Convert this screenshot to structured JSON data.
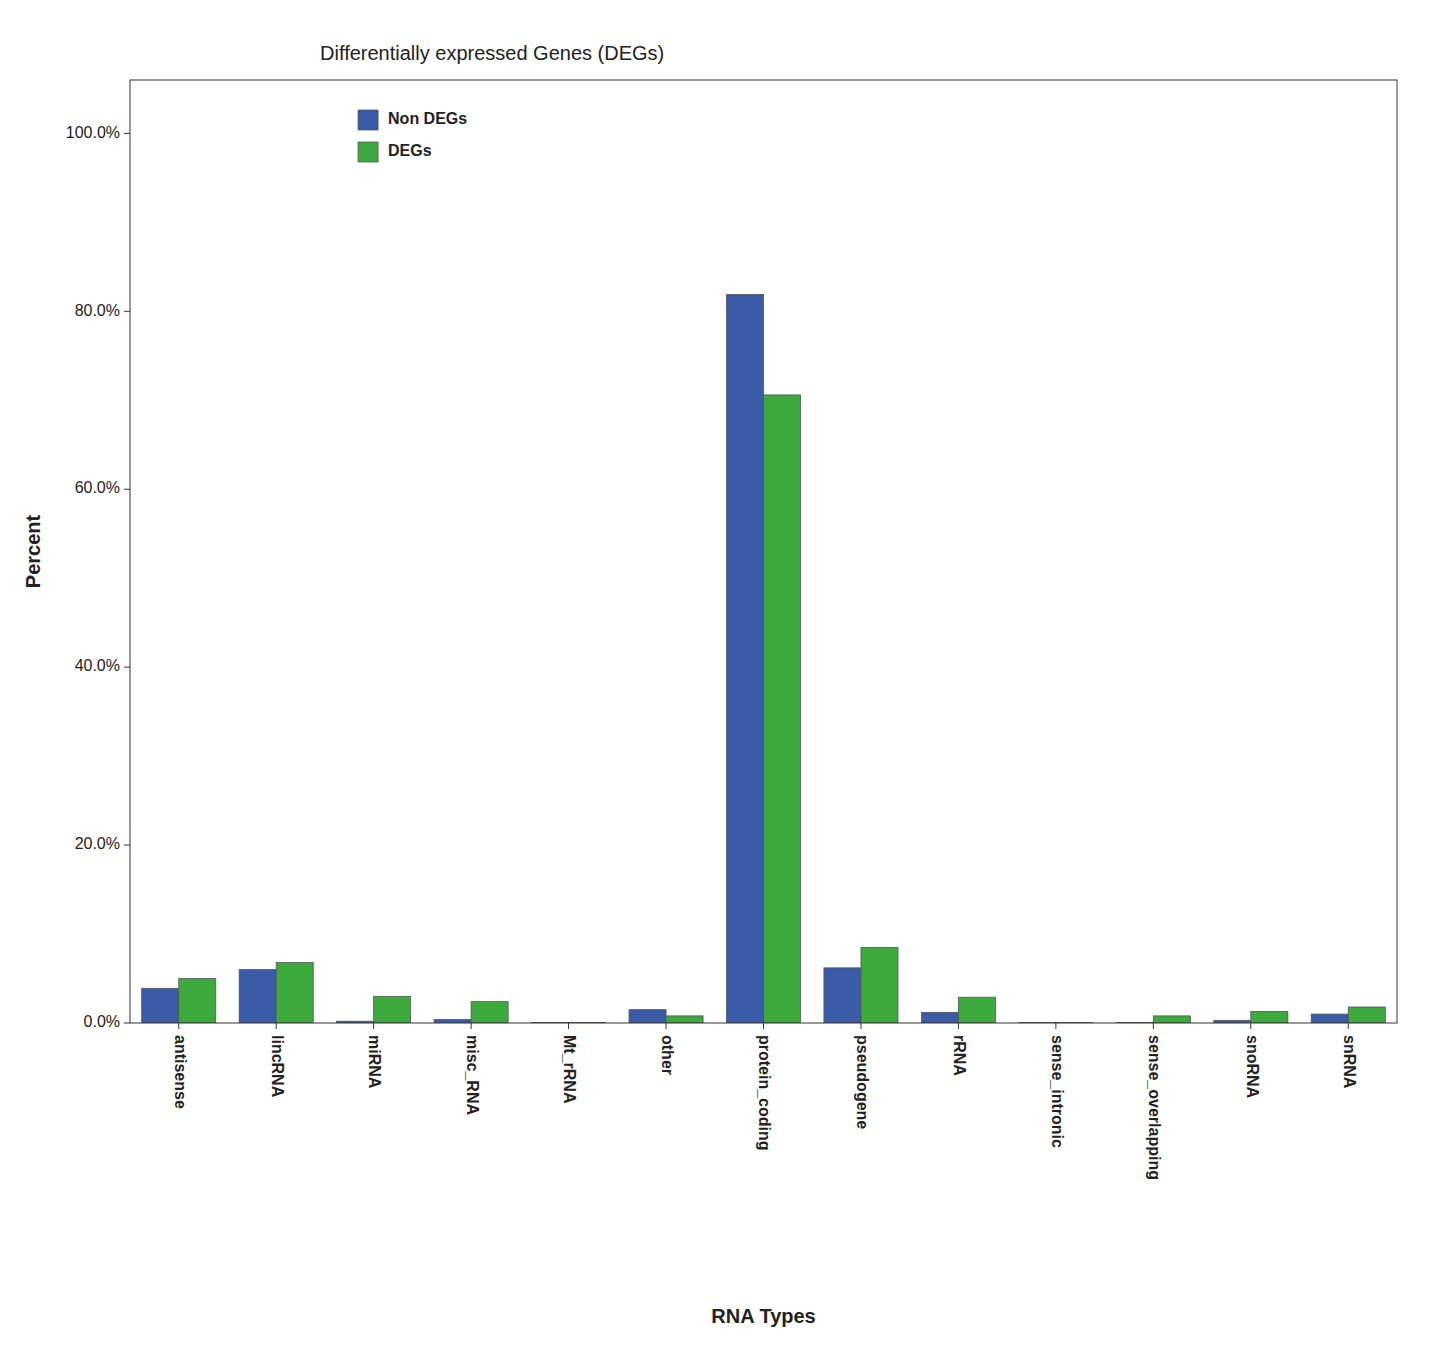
{
  "chart_data": {
    "type": "bar",
    "title": "Differentially expressed Genes (DEGs)",
    "x_label": "RNA Types",
    "y_label": "Percent",
    "categories": [
      "antisense",
      "lincRNA",
      "miRNA",
      "misc_RNA",
      "Mt_rRNA",
      "other",
      "protein_coding",
      "pseudogene",
      "rRNA",
      "sense_intronic",
      "sense_overlapping",
      "snoRNA",
      "snRNA"
    ],
    "series": [
      {
        "name": "Non DEGs",
        "color": "#3a5ca8",
        "values": [
          3.9,
          6.0,
          0.2,
          0.4,
          0.05,
          1.5,
          81.9,
          6.2,
          1.2,
          0.05,
          0.05,
          0.3,
          1.0
        ]
      },
      {
        "name": "DEGs",
        "color": "#3daa3d",
        "values": [
          5.0,
          6.8,
          3.0,
          2.4,
          0.05,
          0.8,
          70.6,
          8.5,
          2.9,
          0.05,
          0.8,
          1.3,
          1.8
        ]
      }
    ],
    "ylim": [
      0,
      106
    ],
    "yticks": [
      {
        "value": 0.0,
        "label": "0.0%"
      },
      {
        "value": 20.0,
        "label": "20.0%"
      },
      {
        "value": 40.0,
        "label": "40.0%"
      },
      {
        "value": 60.0,
        "label": "60.0%"
      },
      {
        "value": 80.0,
        "label": "80.0%"
      },
      {
        "value": 100.0,
        "label": "100.0%"
      }
    ],
    "grid": false,
    "legend": "top-left"
  }
}
